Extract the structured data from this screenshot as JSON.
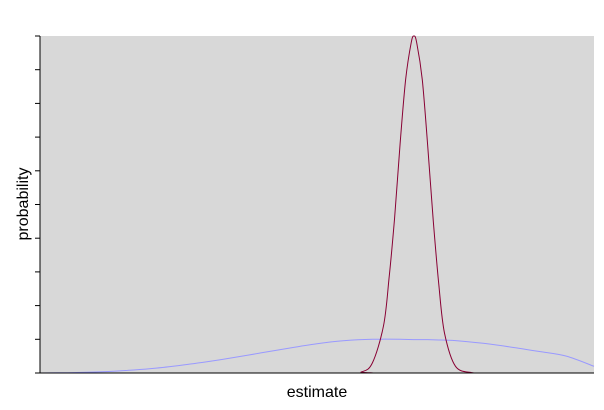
{
  "chart_data": {
    "type": "line",
    "title": "",
    "xlabel": "estimate",
    "ylabel": "probability",
    "xlim": [
      0,
      1
    ],
    "ylim": [
      0,
      1
    ],
    "y_ticks": 10,
    "grid": false,
    "legend": "none",
    "plot_background": "#d8d8d8",
    "series": [
      {
        "color": "#9999ff",
        "x": [
          0.0,
          0.05,
          0.1,
          0.15,
          0.2,
          0.25,
          0.3,
          0.35,
          0.4,
          0.45,
          0.5,
          0.55,
          0.6,
          0.65,
          0.68,
          0.7,
          0.72,
          0.75,
          0.8,
          0.85,
          0.9,
          0.95,
          1.0
        ],
        "y": [
          0.0,
          0.001,
          0.003,
          0.007,
          0.013,
          0.022,
          0.033,
          0.046,
          0.06,
          0.074,
          0.087,
          0.096,
          0.1,
          0.1,
          0.099,
          0.099,
          0.098,
          0.096,
          0.088,
          0.077,
          0.064,
          0.05,
          0.02
        ]
      },
      {
        "color": "#880033",
        "x": [
          0.0,
          0.55,
          0.58,
          0.6,
          0.62,
          0.63,
          0.64,
          0.65,
          0.66,
          0.67,
          0.675,
          0.68,
          0.69,
          0.7,
          0.71,
          0.72,
          0.73,
          0.75,
          0.78,
          0.8,
          1.0
        ],
        "y": [
          0.0,
          0.0,
          0.003,
          0.03,
          0.14,
          0.28,
          0.46,
          0.68,
          0.87,
          0.98,
          1.0,
          0.98,
          0.87,
          0.67,
          0.45,
          0.26,
          0.12,
          0.02,
          0.001,
          0.0,
          0.0
        ]
      }
    ]
  }
}
